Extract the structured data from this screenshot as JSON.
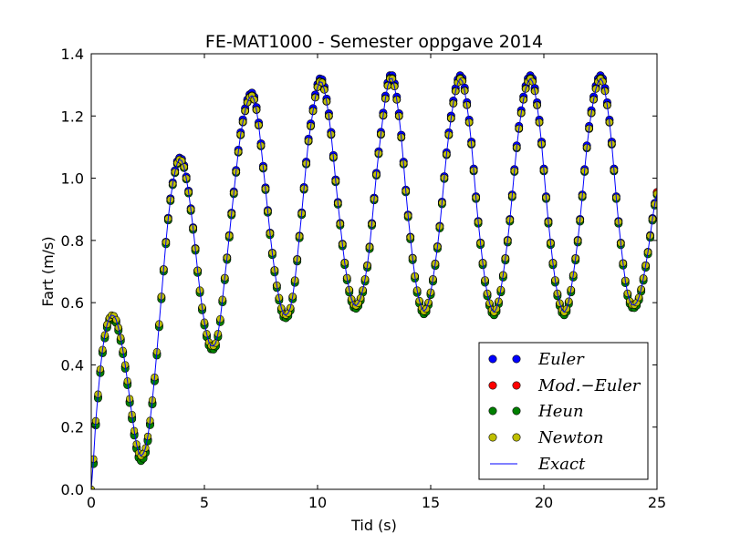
{
  "chart_data": {
    "type": "line",
    "title": "FE-MAT1000 - Semester oppgave 2014",
    "xlabel": "Tid (s)",
    "ylabel": "Fart (m/s)",
    "xlim": [
      0,
      25
    ],
    "ylim": [
      0,
      1.4
    ],
    "xticks": [
      0,
      5,
      10,
      15,
      20,
      25
    ],
    "yticks": [
      0.0,
      0.2,
      0.4,
      0.6,
      0.8,
      1.0,
      1.2,
      1.4
    ],
    "xtick_labels": [
      "0",
      "5",
      "10",
      "15",
      "20",
      "25"
    ],
    "ytick_labels": [
      "0.0",
      "0.2",
      "0.4",
      "0.6",
      "0.8",
      "1.0",
      "1.2",
      "1.4"
    ],
    "grid": false,
    "legend_position": "lower-right",
    "colors": {
      "Euler": "#0000ff",
      "Mod.−Euler": "#ff0000",
      "Heun": "#008000",
      "Newton": "#bfbf00",
      "Exact": "#0000ff"
    },
    "legend": [
      "Euler",
      "Mod.−Euler",
      "Heun",
      "Newton",
      "Exact"
    ],
    "approximate_trajectory": {
      "x": [
        0,
        0.2,
        0.45,
        0.7,
        0.95,
        1.2,
        1.5,
        1.8,
        2.05,
        2.25,
        2.5,
        2.8,
        3.1,
        3.4,
        3.7,
        3.95,
        4.2,
        4.5,
        4.8,
        5.1,
        5.35,
        5.6,
        5.9,
        6.25,
        6.6,
        7.0,
        7.3,
        7.65,
        8.0,
        8.35,
        8.6,
        8.9,
        9.25,
        9.6,
        10.1,
        10.5,
        10.9,
        11.3,
        11.7,
        12.2,
        12.7,
        13.2,
        13.6,
        14.0,
        14.4,
        14.8,
        15.3,
        15.8,
        16.3,
        16.7,
        17.1,
        17.5,
        17.9,
        18.4,
        18.9,
        19.4,
        19.8,
        20.2,
        20.6,
        21.0,
        21.5,
        22.0,
        22.5,
        22.9,
        23.3,
        23.7,
        24.1,
        24.5,
        25.0
      ],
      "y": [
        0.0,
        0.22,
        0.42,
        0.53,
        0.56,
        0.52,
        0.4,
        0.24,
        0.13,
        0.11,
        0.17,
        0.36,
        0.62,
        0.87,
        1.02,
        1.06,
        1.0,
        0.84,
        0.64,
        0.5,
        0.46,
        0.5,
        0.68,
        0.92,
        1.14,
        1.26,
        1.22,
        1.0,
        0.76,
        0.6,
        0.56,
        0.62,
        0.85,
        1.12,
        1.31,
        1.2,
        0.92,
        0.68,
        0.59,
        0.72,
        1.08,
        1.32,
        1.2,
        0.88,
        0.64,
        0.58,
        0.78,
        1.14,
        1.32,
        1.18,
        0.86,
        0.63,
        0.58,
        0.8,
        1.16,
        1.32,
        1.18,
        0.86,
        0.63,
        0.58,
        0.8,
        1.16,
        1.32,
        1.18,
        0.86,
        0.63,
        0.6,
        0.72,
        0.95
      ]
    }
  }
}
